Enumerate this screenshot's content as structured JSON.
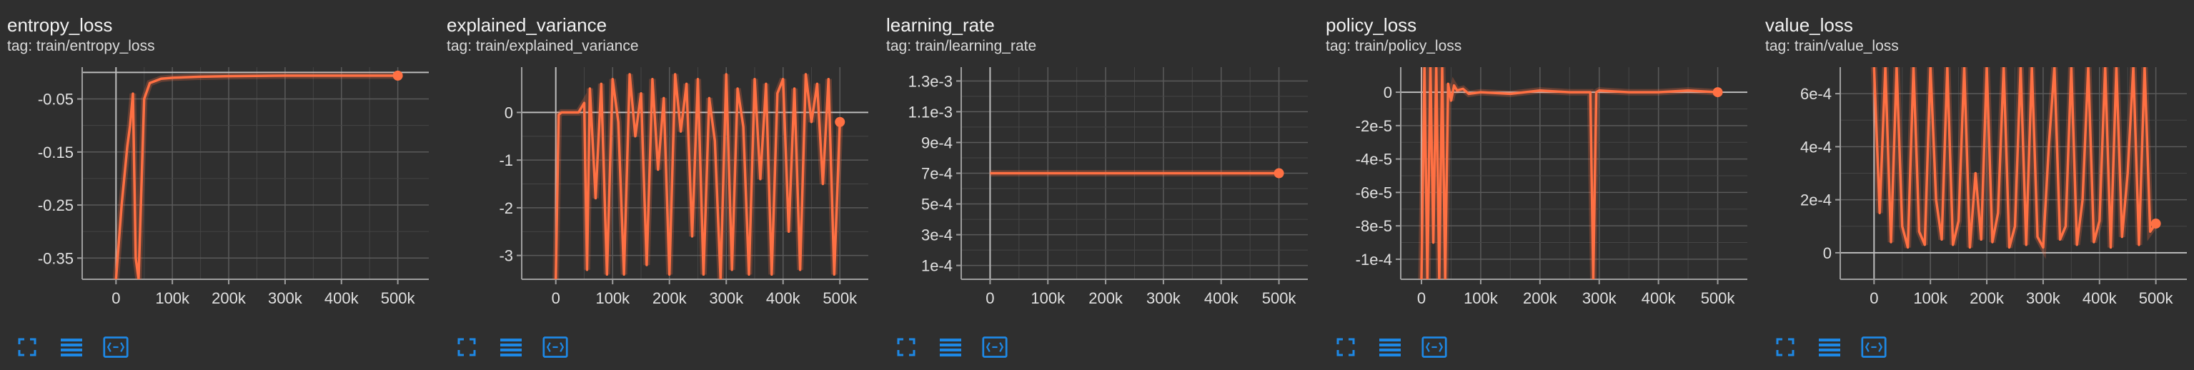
{
  "charts": [
    {
      "title": "entropy_loss",
      "tag": "tag: train/entropy_loss"
    },
    {
      "title": "explained_variance",
      "tag": "tag: train/explained_variance"
    },
    {
      "title": "learning_rate",
      "tag": "tag: train/learning_rate"
    },
    {
      "title": "policy_loss",
      "tag": "tag: train/policy_loss"
    },
    {
      "title": "value_loss",
      "tag": "tag: train/value_loss"
    }
  ],
  "colors": {
    "background": "#2f2f2f",
    "line": "#ff7043",
    "grid": "#5a5a5a",
    "axis": "#bdbdbd",
    "icon": "#1e88e5"
  },
  "toolbar_icons": [
    "fullscreen-icon",
    "data-table-icon",
    "fit-domain-icon"
  ],
  "chart_data": [
    {
      "type": "line",
      "title": "entropy_loss",
      "x_ticks": [
        "0",
        "100k",
        "200k",
        "300k",
        "400k",
        "500k"
      ],
      "y_ticks": [
        "-0.05",
        "-0.15",
        "-0.25",
        "-0.35"
      ],
      "xlim": [
        -60000,
        555000
      ],
      "ylim": [
        -0.39,
        0.01
      ],
      "grid": true,
      "series": [
        {
          "x": [
            0,
            10000,
            20000,
            25000,
            30000,
            35000,
            40000,
            45000,
            50000,
            60000,
            80000,
            100000,
            150000,
            200000,
            300000,
            400000,
            500000
          ],
          "y": [
            -0.39,
            -0.25,
            -0.14,
            -0.1,
            -0.04,
            -0.35,
            -0.39,
            -0.22,
            -0.05,
            -0.02,
            -0.012,
            -0.01,
            -0.008,
            -0.007,
            -0.006,
            -0.006,
            -0.006
          ]
        }
      ]
    },
    {
      "type": "line",
      "title": "explained_variance",
      "x_ticks": [
        "0",
        "100k",
        "200k",
        "300k",
        "400k",
        "500k"
      ],
      "y_ticks": [
        "0",
        "-1",
        "-2",
        "-3"
      ],
      "xlim": [
        -60000,
        550000
      ],
      "ylim": [
        -3.5,
        0.95
      ],
      "grid": true,
      "series": [
        {
          "x": [
            0,
            5000,
            10000,
            40000,
            50000,
            55000,
            60000,
            70000,
            80000,
            90000,
            100000,
            110000,
            120000,
            130000,
            140000,
            150000,
            160000,
            170000,
            180000,
            190000,
            200000,
            210000,
            220000,
            230000,
            240000,
            250000,
            260000,
            270000,
            280000,
            290000,
            300000,
            310000,
            320000,
            330000,
            340000,
            350000,
            360000,
            370000,
            380000,
            390000,
            400000,
            410000,
            420000,
            430000,
            440000,
            450000,
            460000,
            470000,
            480000,
            490000,
            500000
          ],
          "y": [
            -3.5,
            -0.05,
            0,
            0,
            0.2,
            -3.3,
            0.5,
            -1.8,
            0.6,
            -3.4,
            0.7,
            -0.2,
            -3.4,
            0.8,
            -0.5,
            0.4,
            -3.2,
            0.7,
            -1.2,
            0.3,
            -3.4,
            0.8,
            -0.4,
            0.6,
            -2.6,
            0.7,
            -3.4,
            0.3,
            -0.6,
            -3.5,
            0.8,
            -3.3,
            0.5,
            -0.3,
            -3.4,
            0.7,
            -1.4,
            0.6,
            -3.4,
            0.4,
            0.7,
            -2.5,
            0.5,
            -3.3,
            0.8,
            -0.2,
            0.6,
            -1.5,
            0.7,
            -3.4,
            -0.2
          ]
        }
      ]
    },
    {
      "type": "line",
      "title": "learning_rate",
      "x_ticks": [
        "0",
        "100k",
        "200k",
        "300k",
        "400k",
        "500k"
      ],
      "y_ticks": [
        "1.3e-3",
        "1.1e-3",
        "9e-4",
        "7e-4",
        "5e-4",
        "3e-4",
        "1e-4"
      ],
      "xlim": [
        -50000,
        550000
      ],
      "ylim": [
        1e-05,
        0.00139
      ],
      "grid": true,
      "series": [
        {
          "x": [
            0,
            500000
          ],
          "y": [
            0.0007,
            0.0007
          ]
        }
      ]
    },
    {
      "type": "line",
      "title": "policy_loss",
      "x_ticks": [
        "0",
        "100k",
        "200k",
        "300k",
        "400k",
        "500k"
      ],
      "y_ticks": [
        "0",
        "-2e-5",
        "-4e-5",
        "-6e-5",
        "-8e-5",
        "-1e-4"
      ],
      "xlim": [
        -35000,
        550000
      ],
      "ylim": [
        -0.000112,
        1.5e-05
      ],
      "grid": true,
      "series": [
        {
          "x": [
            0,
            5000,
            10000,
            15000,
            20000,
            25000,
            30000,
            35000,
            40000,
            45000,
            50000,
            55000,
            60000,
            70000,
            80000,
            100000,
            150000,
            200000,
            250000,
            285000,
            290000,
            295000,
            300000,
            350000,
            400000,
            450000,
            500000
          ],
          "y": [
            -0.000112,
            1.5e-05,
            -0.000112,
            1.5e-05,
            -9e-05,
            1.5e-05,
            -0.000112,
            1.5e-05,
            -0.000112,
            5e-06,
            -5e-06,
            4e-06,
            1e-06,
            2e-06,
            -1e-06,
            0,
            -1e-06,
            1e-06,
            0,
            0,
            -0.000112,
            0,
            1e-06,
            0,
            0,
            1e-06,
            0
          ]
        }
      ]
    },
    {
      "type": "line",
      "title": "value_loss",
      "x_ticks": [
        "0",
        "100k",
        "200k",
        "300k",
        "400k",
        "500k"
      ],
      "y_ticks": [
        "6e-4",
        "4e-4",
        "2e-4",
        "0"
      ],
      "xlim": [
        -60000,
        555000
      ],
      "ylim": [
        -0.0001,
        0.0007
      ],
      "grid": true,
      "series": [
        {
          "x": [
            0,
            10000,
            20000,
            30000,
            40000,
            50000,
            60000,
            70000,
            80000,
            90000,
            100000,
            110000,
            120000,
            130000,
            140000,
            150000,
            160000,
            170000,
            180000,
            190000,
            200000,
            210000,
            220000,
            230000,
            240000,
            250000,
            260000,
            270000,
            280000,
            290000,
            300000,
            310000,
            320000,
            330000,
            340000,
            350000,
            360000,
            370000,
            380000,
            390000,
            400000,
            410000,
            420000,
            430000,
            440000,
            450000,
            460000,
            470000,
            480000,
            490000,
            500000
          ],
          "y": [
            0.0007,
            0.00015,
            0.0007,
            4e-05,
            0.0007,
            0.0001,
            2e-05,
            0.0007,
            8e-05,
            3e-05,
            0.0007,
            0.0002,
            5e-05,
            0.0007,
            3e-05,
            0.00012,
            0.0007,
            2e-05,
            0.0003,
            5e-05,
            0.0007,
            4e-05,
            0.00015,
            0.0007,
            2e-05,
            0.0001,
            0.0007,
            3e-05,
            0.0007,
            6e-05,
            2e-05,
            0.0004,
            0.0007,
            5e-05,
            0.0001,
            0.0007,
            3e-05,
            0.0002,
            0.0007,
            4e-05,
            0.00012,
            0.0007,
            2e-05,
            0.0007,
            6e-05,
            0.0003,
            0.0007,
            3e-05,
            0.0007,
            8e-05,
            0.00011
          ]
        }
      ]
    }
  ]
}
